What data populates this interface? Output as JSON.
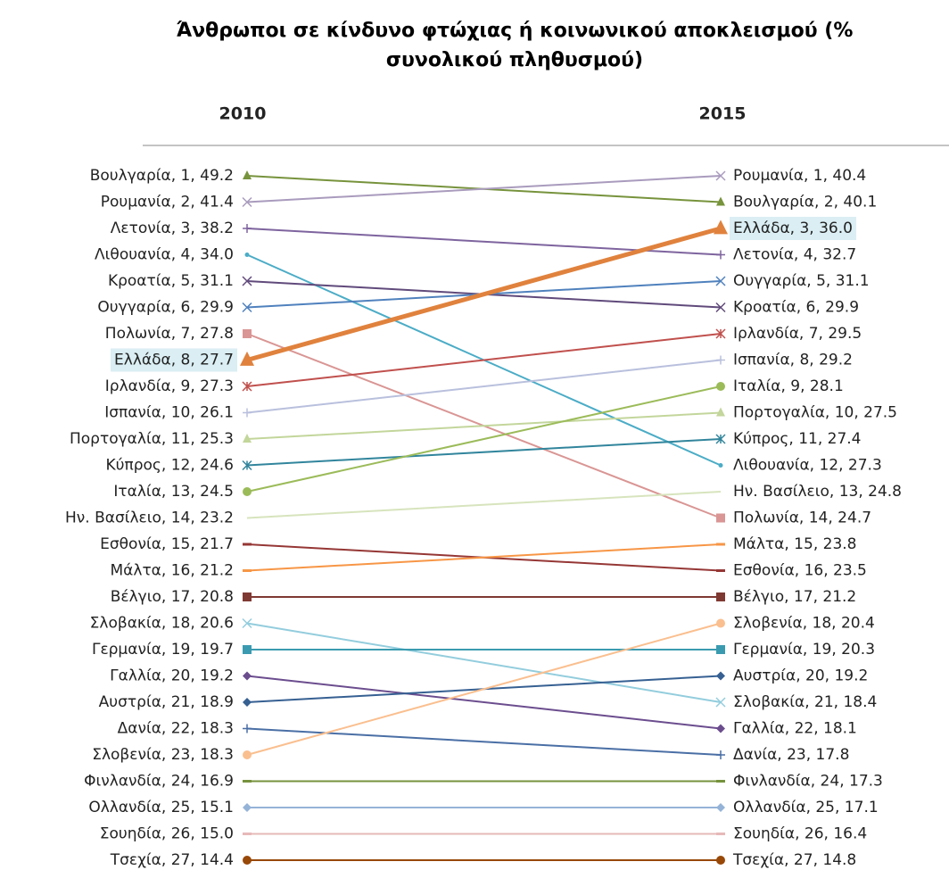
{
  "chart_data": {
    "type": "slope",
    "title": "Άνθρωποι σε κίνδυνο φτώχιας ή κοινωνικού αποκλεισμού (% συνολικού πληθυσμού)",
    "categories": [
      "2010",
      "2015"
    ],
    "series": [
      {
        "color": "#77933c",
        "marker": "triangle",
        "ranks": [
          1,
          2
        ],
        "values": [
          49.2,
          40.1
        ],
        "value_labels": [
          "Βουλγαρία, 1, 49.2",
          "Βουλγαρία, 2, 40.1"
        ]
      },
      {
        "color": "#a99bbd",
        "marker": "x",
        "ranks": [
          2,
          1
        ],
        "values": [
          41.4,
          40.4
        ],
        "value_labels": [
          "Ρουμανία, 2, 41.4",
          "Ρουμανία, 1, 40.4"
        ]
      },
      {
        "color": "#7e649e",
        "marker": "plus",
        "ranks": [
          3,
          4
        ],
        "values": [
          38.2,
          32.7
        ],
        "value_labels": [
          "Λετονία, 3, 38.2",
          "Λετονία, 4, 32.7"
        ]
      },
      {
        "color": "#4bacc6",
        "marker": "dot",
        "ranks": [
          4,
          12
        ],
        "values": [
          34.0,
          27.3
        ],
        "value_labels": [
          "Λιθουανία, 4, 34.0",
          "Λιθουανία, 12, 27.3"
        ]
      },
      {
        "color": "#604a7b",
        "marker": "x",
        "ranks": [
          5,
          6
        ],
        "values": [
          31.1,
          29.9
        ],
        "value_labels": [
          "Κροατία, 5, 31.1",
          "Κροατία, 6, 29.9"
        ]
      },
      {
        "color": "#4f81bd",
        "marker": "x",
        "ranks": [
          6,
          5
        ],
        "values": [
          29.9,
          31.1
        ],
        "value_labels": [
          "Ουγγαρία, 6, 29.9",
          "Ουγγαρία, 5, 31.1"
        ]
      },
      {
        "color": "#d99694",
        "marker": "square",
        "ranks": [
          7,
          14
        ],
        "values": [
          27.8,
          24.7
        ],
        "value_labels": [
          "Πολωνία, 7, 27.8",
          "Πολωνία, 14, 24.7"
        ]
      },
      {
        "color": "#e0823d",
        "marker": "triangle",
        "highlight": true,
        "ranks": [
          8,
          3
        ],
        "values": [
          27.7,
          36.0
        ],
        "value_labels": [
          "Ελλάδα, 8, 27.7",
          "Ελλάδα, 3, 36.0"
        ]
      },
      {
        "color": "#c0504d",
        "marker": "star",
        "ranks": [
          9,
          7
        ],
        "values": [
          27.3,
          29.5
        ],
        "value_labels": [
          "Ιρλανδία, 9, 27.3",
          "Ιρλανδία, 7, 29.5"
        ]
      },
      {
        "color": "#b9c0dd",
        "marker": "plus",
        "ranks": [
          10,
          8
        ],
        "values": [
          26.1,
          29.2
        ],
        "value_labels": [
          "Ισπανία, 10, 26.1",
          "Ισπανία, 8, 29.2"
        ]
      },
      {
        "color": "#c3d69b",
        "marker": "triangle",
        "ranks": [
          11,
          10
        ],
        "values": [
          25.3,
          27.5
        ],
        "value_labels": [
          "Πορτογαλία, 11, 25.3",
          "Πορτογαλία, 10, 27.5"
        ]
      },
      {
        "color": "#31859c",
        "marker": "star",
        "ranks": [
          12,
          11
        ],
        "values": [
          24.6,
          27.4
        ],
        "value_labels": [
          "Κύπρος, 12, 24.6",
          "Κύπρος, 11, 27.4"
        ]
      },
      {
        "color": "#9bbb59",
        "marker": "circle",
        "ranks": [
          13,
          9
        ],
        "values": [
          24.5,
          28.1
        ],
        "value_labels": [
          "Ιταλία, 13, 24.5",
          "Ιταλία, 9, 28.1"
        ]
      },
      {
        "color": "#d7e4bd",
        "marker": "none",
        "ranks": [
          14,
          13
        ],
        "values": [
          23.2,
          24.8
        ],
        "value_labels": [
          "Ην. Βασίλειο, 14, 23.2",
          "Ην. Βασίλειο, 13, 24.8"
        ]
      },
      {
        "color": "#953735",
        "marker": "dash",
        "ranks": [
          15,
          16
        ],
        "values": [
          21.7,
          23.5
        ],
        "value_labels": [
          "Εσθονία, 15, 21.7",
          "Εσθονία, 16, 23.5"
        ]
      },
      {
        "color": "#f79646",
        "marker": "dash",
        "ranks": [
          16,
          15
        ],
        "values": [
          21.2,
          23.8
        ],
        "value_labels": [
          "Μάλτα, 16, 21.2",
          "Μάλτα, 15, 23.8"
        ]
      },
      {
        "color": "#7f3933",
        "marker": "square",
        "ranks": [
          17,
          17
        ],
        "values": [
          20.8,
          21.2
        ],
        "value_labels": [
          "Βέλγιο, 17, 20.8",
          "Βέλγιο, 17, 21.2"
        ]
      },
      {
        "color": "#93cddd",
        "marker": "x",
        "ranks": [
          18,
          21
        ],
        "values": [
          20.6,
          18.4
        ],
        "value_labels": [
          "Σλοβακία, 18, 20.6",
          "Σλοβακία, 21, 18.4"
        ]
      },
      {
        "color": "#3a9bb0",
        "marker": "square",
        "ranks": [
          19,
          19
        ],
        "values": [
          19.7,
          20.3
        ],
        "value_labels": [
          "Γερμανία, 19, 19.7",
          "Γερμανία, 19, 20.3"
        ]
      },
      {
        "color": "#6b4d8e",
        "marker": "diamond",
        "ranks": [
          20,
          22
        ],
        "values": [
          19.2,
          18.1
        ],
        "value_labels": [
          "Γαλλία, 20, 19.2",
          "Γαλλία, 22, 18.1"
        ]
      },
      {
        "color": "#366092",
        "marker": "diamond",
        "ranks": [
          21,
          20
        ],
        "values": [
          18.9,
          19.2
        ],
        "value_labels": [
          "Αυστρία, 21, 18.9",
          "Αυστρία, 20, 19.2"
        ]
      },
      {
        "color": "#4a6fa5",
        "marker": "plus",
        "ranks": [
          22,
          23
        ],
        "values": [
          18.3,
          17.8
        ],
        "value_labels": [
          "Δανία, 22, 18.3",
          "Δανία, 23, 17.8"
        ]
      },
      {
        "color": "#fabf8f",
        "marker": "circle",
        "ranks": [
          23,
          18
        ],
        "values": [
          18.3,
          20.4
        ],
        "value_labels": [
          "Σλοβενία, 23, 18.3",
          "Σλοβενία, 18, 20.4"
        ]
      },
      {
        "color": "#76923c",
        "marker": "dash",
        "ranks": [
          24,
          24
        ],
        "values": [
          16.9,
          17.3
        ],
        "value_labels": [
          "Φινλανδία, 24, 16.9",
          "Φινλανδία, 24, 17.3"
        ]
      },
      {
        "color": "#95b3d7",
        "marker": "diamond",
        "ranks": [
          25,
          25
        ],
        "values": [
          15.1,
          17.1
        ],
        "value_labels": [
          "Ολλανδία, 25, 15.1",
          "Ολλανδία, 25, 17.1"
        ]
      },
      {
        "color": "#e6b9b8",
        "marker": "dash",
        "ranks": [
          26,
          26
        ],
        "values": [
          15.0,
          16.4
        ],
        "value_labels": [
          "Σουηδία, 26, 15.0",
          "Σουηδία, 26, 16.4"
        ]
      },
      {
        "color": "#984807",
        "marker": "circle",
        "ranks": [
          27,
          27
        ],
        "values": [
          14.4,
          14.8
        ],
        "value_labels": [
          "Τσεχία, 27, 14.4",
          "Τσεχία, 27, 14.8"
        ]
      }
    ]
  }
}
